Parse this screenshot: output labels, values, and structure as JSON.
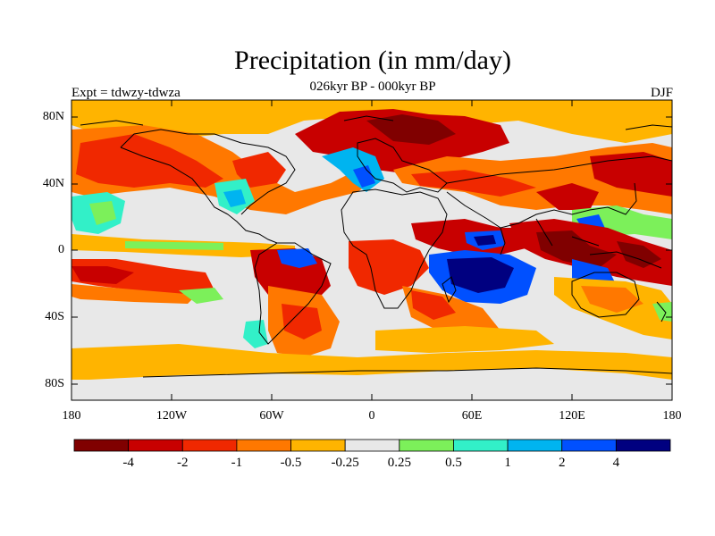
{
  "title": "Precipitation (in mm/day)",
  "subtitle": "026kyr BP - 000kyr BP",
  "left_label": "Expt = tdwzy-tdwza",
  "right_label": "DJF",
  "lat_ticks": [
    "80N",
    "40N",
    "0",
    "40S",
    "80S"
  ],
  "lon_ticks": [
    "180",
    "120W",
    "60W",
    "0",
    "60E",
    "120E",
    "180"
  ],
  "colorbar": {
    "colors": [
      "#800000",
      "#c80000",
      "#f02800",
      "#ff7800",
      "#ffb400",
      "#e8e8e8",
      "#7cf05a",
      "#32f0c8",
      "#00b4f0",
      "#0050ff",
      "#000080"
    ],
    "labels": [
      "-4",
      "-2",
      "-1",
      "-0.5",
      "-0.25",
      "0.25",
      "0.5",
      "1",
      "2",
      "4"
    ]
  }
}
